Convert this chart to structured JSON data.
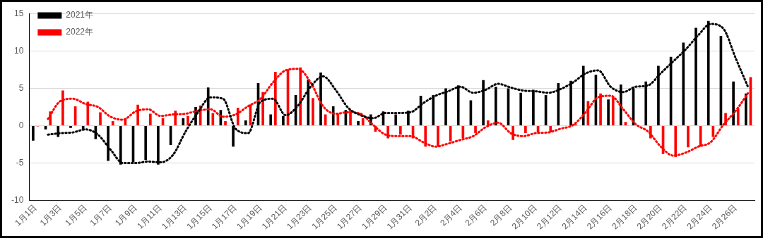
{
  "chart_data": {
    "type": "bar",
    "categories": [
      "1月1日",
      null,
      "1月3日",
      null,
      "1月5日",
      null,
      "1月7日",
      null,
      "1月9日",
      null,
      "1月11日",
      null,
      "1月13日",
      null,
      "1月15日",
      null,
      "1月17日",
      null,
      "1月19日",
      null,
      "1月21日",
      null,
      "1月23日",
      null,
      "1月25日",
      null,
      "1月27日",
      null,
      "1月29日",
      null,
      "1月31日",
      null,
      "2月2日",
      null,
      "2月4日",
      null,
      "2月6日",
      null,
      "2月8日",
      null,
      "2月10日",
      null,
      "2月12日",
      null,
      "2月14日",
      null,
      "2月16日",
      null,
      "2月18日",
      null,
      "2月20日",
      null,
      "2月22日",
      null,
      "2月24日",
      null,
      "2月26日",
      null
    ],
    "series": [
      {
        "name": "2021年",
        "color": "#000000",
        "values": [
          -2.0,
          -0.5,
          -1.5,
          -0.3,
          -0.6,
          -1.8,
          -4.7,
          -5.2,
          -4.9,
          -4.6,
          -5.2,
          -2.6,
          1.0,
          2.5,
          5.1,
          2.1,
          -2.8,
          0.7,
          5.7,
          1.5,
          1.3,
          4.1,
          6.2,
          7.1,
          2.6,
          2.1,
          0.6,
          1.5,
          1.9,
          1.5,
          2.0,
          4.0,
          4.1,
          5.0,
          5.4,
          3.4,
          6.1,
          5.2,
          5.0,
          4.4,
          4.8,
          4.1,
          5.7,
          6.0,
          8.0,
          6.8,
          3.5,
          5.5,
          5.0,
          5.9,
          8.0,
          9.2,
          11.1,
          13.1,
          14.0,
          12.0,
          5.9,
          4.3
        ]
      },
      {
        "name": "2022年",
        "color": "#ff0000",
        "values": [
          -0.1,
          1.9,
          4.7,
          2.6,
          3.2,
          1.8,
          0.6,
          1.0,
          2.8,
          1.6,
          1.0,
          2.0,
          1.3,
          2.7,
          1.7,
          0.6,
          2.4,
          2.8,
          4.5,
          7.2,
          7.5,
          7.8,
          3.7,
          1.5,
          1.6,
          2.1,
          1.0,
          -0.8,
          -1.7,
          -1.2,
          -1.7,
          -2.8,
          -2.8,
          -2.1,
          -1.7,
          -1.0,
          0.7,
          0.0,
          -1.9,
          -1.0,
          -0.9,
          -0.9,
          0.0,
          0.2,
          3.3,
          4.3,
          3.8,
          0.5,
          0.0,
          -1.7,
          -3.8,
          -4.2,
          -2.9,
          -2.8,
          -1.5,
          1.7,
          2.3,
          6.5
        ]
      },
      {
        "type": "line",
        "color": "#000000",
        "line_style": "dotted",
        "marker": "none",
        "values": [
          null,
          -1.2,
          -1.0,
          -0.9,
          -0.5,
          -1.2,
          -3.2,
          -5.0,
          -5.0,
          -4.8,
          -4.9,
          -3.9,
          -0.8,
          1.8,
          3.8,
          3.6,
          -0.4,
          -1.0,
          3.2,
          3.6,
          1.4,
          2.7,
          5.2,
          6.6,
          4.8,
          2.4,
          1.4,
          1.0,
          1.7,
          1.7,
          1.8,
          3.0,
          4.0,
          4.6,
          5.2,
          4.4,
          4.8,
          5.6,
          5.1,
          4.7,
          4.6,
          4.4,
          4.9,
          5.8,
          7.0,
          7.4,
          5.2,
          4.5,
          5.2,
          5.4,
          7.0,
          8.6,
          10.2,
          12.1,
          13.6,
          13.0,
          9.0,
          5.1
        ]
      },
      {
        "type": "line",
        "color": "#ff0000",
        "line_style": "dotted",
        "marker": "none",
        "values": [
          null,
          0.9,
          3.3,
          3.6,
          2.9,
          2.5,
          1.2,
          0.8,
          1.9,
          2.2,
          1.3,
          1.5,
          1.6,
          2.0,
          2.2,
          1.2,
          1.5,
          2.6,
          3.6,
          5.8,
          7.4,
          7.6,
          5.8,
          2.6,
          1.6,
          1.8,
          1.6,
          0.1,
          -1.2,
          -1.4,
          -1.4,
          -2.2,
          -2.8,
          -2.4,
          -1.9,
          -1.4,
          -0.2,
          0.4,
          -1.0,
          -1.4,
          -1.0,
          -0.9,
          -0.4,
          0.1,
          1.8,
          3.8,
          4.0,
          2.2,
          0.2,
          -0.8,
          -2.8,
          -4.0,
          -3.6,
          -2.8,
          -2.2,
          0.1,
          2.0,
          4.4
        ]
      }
    ],
    "ylim": [
      -10,
      15
    ],
    "yticks": [
      -10,
      -5,
      0,
      5,
      10,
      15
    ],
    "grid": "y",
    "legend": "top left"
  }
}
